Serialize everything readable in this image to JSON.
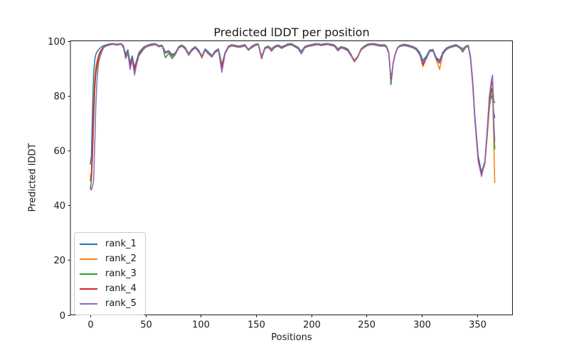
{
  "chart_data": {
    "type": "line",
    "title": "Predicted lDDT per position",
    "xlabel": "Positions",
    "ylabel": "Predicted lDDT",
    "xlim": [
      -18,
      382
    ],
    "ylim": [
      0,
      100
    ],
    "xticks": [
      0,
      50,
      100,
      150,
      200,
      250,
      300,
      350
    ],
    "yticks": [
      0,
      20,
      40,
      60,
      80,
      100
    ],
    "grid": false,
    "legend_position": "lower left",
    "background": "#ffffff",
    "axis_color": "#1a1a1a",
    "positions": [
      0,
      1,
      2,
      3,
      4,
      5,
      6,
      7,
      8,
      10,
      12,
      14,
      16,
      18,
      20,
      22,
      24,
      26,
      28,
      30,
      32,
      34,
      36,
      38,
      40,
      42,
      44,
      46,
      48,
      50,
      53,
      56,
      59,
      62,
      65,
      68,
      71,
      74,
      77,
      80,
      83,
      86,
      89,
      92,
      95,
      98,
      101,
      104,
      107,
      110,
      113,
      116,
      119,
      122,
      125,
      128,
      131,
      134,
      137,
      140,
      143,
      146,
      149,
      152,
      155,
      158,
      161,
      164,
      167,
      170,
      173,
      176,
      179,
      182,
      185,
      188,
      191,
      194,
      197,
      200,
      203,
      206,
      209,
      212,
      215,
      218,
      221,
      224,
      227,
      230,
      233,
      236,
      239,
      242,
      245,
      248,
      251,
      254,
      257,
      260,
      263,
      266,
      268,
      270,
      271,
      272,
      273,
      274,
      276,
      278,
      280,
      283,
      286,
      289,
      292,
      295,
      298,
      301,
      304,
      307,
      310,
      313,
      316,
      319,
      322,
      325,
      328,
      331,
      334,
      337,
      340,
      342,
      344,
      346,
      348,
      351,
      354,
      357,
      359,
      361,
      363,
      364,
      365,
      366
    ],
    "series": [
      {
        "name": "rank_1",
        "color": "#1f77b4",
        "values": [
          55,
          58,
          75,
          88,
          93,
          95,
          96,
          96.5,
          97,
          97.8,
          98.2,
          98.5,
          98.7,
          98.9,
          99,
          98.9,
          98.7,
          98.9,
          99,
          98.2,
          95,
          96.8,
          92,
          94.5,
          90.2,
          93,
          95.8,
          96.7,
          97.6,
          98.1,
          98.6,
          98.9,
          99,
          98.3,
          98.4,
          95.9,
          96.4,
          95,
          95.7,
          97.9,
          98.5,
          97.6,
          95.3,
          97,
          97.9,
          96.6,
          94.5,
          97.1,
          95.9,
          94.6,
          96.3,
          97.1,
          91.3,
          95.7,
          98.1,
          98.6,
          98.4,
          98.1,
          98.3,
          98.6,
          96.9,
          98,
          98.7,
          98.9,
          94.3,
          97.6,
          98.1,
          97.1,
          98.1,
          98.5,
          97.8,
          98.3,
          98.9,
          99,
          98.3,
          97.7,
          96.1,
          97.9,
          98.4,
          98.6,
          98.9,
          99,
          98.7,
          99,
          99,
          98.8,
          98.5,
          97.1,
          97.9,
          97.6,
          97,
          95,
          92.4,
          94.3,
          97.1,
          98.1,
          98.8,
          99,
          99,
          98.7,
          98.5,
          98.6,
          98.1,
          96,
          91.5,
          84,
          87.5,
          91.8,
          95.4,
          97.5,
          98.3,
          98.7,
          98.6,
          98.3,
          97.9,
          97.3,
          95.8,
          92.9,
          94.3,
          96.6,
          96.9,
          93.9,
          92.9,
          95.8,
          97.3,
          97.9,
          98.3,
          98.6,
          97.9,
          97.1,
          98.1,
          98.4,
          94.3,
          85.5,
          72.5,
          58,
          52,
          56,
          66,
          76,
          80,
          79,
          74,
          72
        ]
      },
      {
        "name": "rank_2",
        "color": "#ff7f0e",
        "values": [
          50.5,
          52,
          62,
          76,
          86,
          90.5,
          92.5,
          94,
          95.5,
          96.8,
          97.9,
          98.3,
          98.5,
          98.7,
          98.9,
          98.7,
          98.6,
          98.7,
          98.9,
          97.9,
          94.1,
          96.2,
          90.3,
          93.6,
          89,
          92.2,
          95.2,
          96.2,
          97.2,
          97.9,
          98.4,
          98.7,
          98.9,
          98.1,
          98.2,
          95.6,
          96.1,
          94.7,
          95.4,
          97.7,
          98.3,
          97.3,
          95,
          96.7,
          97.7,
          96.1,
          93.6,
          96.8,
          95.5,
          94.3,
          96,
          96.8,
          90.6,
          95.3,
          97.9,
          98.4,
          98.2,
          97.9,
          98.1,
          98.4,
          96.6,
          97.8,
          98.5,
          98.8,
          94.1,
          97.4,
          97.9,
          96.8,
          97.9,
          98.3,
          97.5,
          98.1,
          98.7,
          98.8,
          98.1,
          97.4,
          95.6,
          97.7,
          98.2,
          98.4,
          98.7,
          98.9,
          98.5,
          98.8,
          98.9,
          98.6,
          98.3,
          96.6,
          97.7,
          97.3,
          96.6,
          94.7,
          93,
          94.4,
          96.9,
          97.9,
          98.6,
          98.9,
          98.8,
          98.5,
          98.3,
          98.4,
          97.9,
          95.8,
          91.8,
          85.5,
          88.2,
          92,
          95.5,
          97.4,
          98.2,
          98.5,
          98.4,
          98.1,
          97.7,
          97,
          95.2,
          90.6,
          93.5,
          96.3,
          96.6,
          93.2,
          89.6,
          95,
          97,
          97.7,
          98.1,
          98.4,
          97.7,
          96.7,
          97.9,
          98.2,
          93.8,
          84.5,
          71,
          56.5,
          51.2,
          55,
          64.5,
          75,
          81.5,
          82.5,
          65,
          48.2
        ]
      },
      {
        "name": "rank_3",
        "color": "#2ca02c",
        "values": [
          46,
          49,
          58,
          71,
          82,
          87.5,
          90.5,
          92.5,
          94.5,
          96.5,
          97.7,
          98.2,
          98.5,
          98.7,
          98.8,
          98.7,
          98.5,
          98.7,
          98.8,
          97.7,
          94.3,
          96,
          91.2,
          93.8,
          89.2,
          92.4,
          95,
          96,
          97.1,
          97.8,
          98.3,
          98.6,
          98.8,
          98,
          98.2,
          93.8,
          95.5,
          93.5,
          95,
          97.5,
          98.2,
          97.1,
          94.9,
          96.6,
          97.6,
          96.2,
          94.3,
          96.7,
          95.3,
          94.5,
          95.9,
          96.7,
          91,
          95.4,
          97.8,
          98.3,
          98.1,
          97.8,
          98,
          98.3,
          96.5,
          97.6,
          98.4,
          98.8,
          93.8,
          97.3,
          97.8,
          96.4,
          97.8,
          98.2,
          97.4,
          98,
          98.6,
          98.7,
          98,
          97.3,
          95.4,
          97.6,
          98.1,
          98.3,
          98.6,
          98.8,
          98.4,
          98.7,
          98.8,
          98.5,
          98.2,
          96.5,
          97.6,
          97.2,
          96.5,
          94.6,
          92.6,
          94.2,
          96.8,
          97.8,
          98.5,
          98.8,
          98.7,
          98.4,
          98.2,
          98.3,
          97.8,
          95.6,
          91.2,
          85.8,
          88,
          91.7,
          95.3,
          97.4,
          98.1,
          98.4,
          98.3,
          98,
          97.6,
          96.9,
          95.3,
          92.2,
          93.8,
          96.2,
          96.5,
          93.6,
          92.2,
          95.3,
          96.9,
          97.6,
          98,
          98.3,
          97.6,
          95.9,
          97.8,
          98.1,
          93.9,
          84.8,
          71.8,
          57.3,
          51.4,
          55.4,
          65.2,
          76.5,
          82.8,
          81,
          70,
          60.5
        ]
      },
      {
        "name": "rank_4",
        "color": "#d62728",
        "values": [
          49,
          51,
          60,
          74,
          84.5,
          89,
          91.5,
          93.5,
          95,
          96.6,
          97.8,
          98.2,
          98.4,
          98.6,
          98.8,
          98.6,
          98.5,
          98.6,
          98.8,
          97.6,
          93.8,
          95.8,
          90.8,
          93.4,
          89.8,
          92,
          94.8,
          95.8,
          96.9,
          97.7,
          98.2,
          98.5,
          98.7,
          97.9,
          98.1,
          95.7,
          96.2,
          94.6,
          95.2,
          97.4,
          98.1,
          97,
          94.8,
          96.5,
          97.5,
          96,
          94.4,
          96.6,
          95.2,
          94.1,
          95.8,
          96.6,
          90.2,
          95.6,
          97.7,
          98.2,
          98,
          97.7,
          97.9,
          98.2,
          96.8,
          97.5,
          98.3,
          98.7,
          93.5,
          97.2,
          97.7,
          96.3,
          97.7,
          98.1,
          97.3,
          97.9,
          98.5,
          98.6,
          97.9,
          97.2,
          95.3,
          97.5,
          98,
          98.2,
          98.5,
          98.7,
          98.3,
          98.6,
          98.7,
          98.4,
          98.1,
          96.4,
          97.5,
          97.1,
          96.4,
          94.5,
          92.5,
          94.1,
          96.7,
          97.7,
          98.4,
          98.7,
          98.6,
          98.3,
          98.1,
          98.2,
          97.7,
          95.5,
          91,
          86.2,
          87.9,
          91.6,
          95.2,
          97.3,
          98,
          98.3,
          98.2,
          97.9,
          97.5,
          96.8,
          95,
          91.2,
          93.6,
          96.1,
          96.4,
          93.4,
          92,
          95.2,
          96.8,
          97.5,
          97.9,
          98.2,
          97.5,
          96.4,
          97.7,
          98,
          93.6,
          84.2,
          71.4,
          57,
          51.1,
          55.5,
          66.5,
          78,
          84,
          85.5,
          78,
          77.5
        ]
      },
      {
        "name": "rank_5",
        "color": "#9467bd",
        "values": [
          47,
          45.5,
          47,
          49,
          62,
          76,
          85,
          90,
          93,
          95.5,
          97.5,
          98,
          98.3,
          98.5,
          98.7,
          98.6,
          98.4,
          98.6,
          98.7,
          97.5,
          93.5,
          95.5,
          89.5,
          93,
          87.5,
          91.5,
          94.5,
          95.6,
          96.8,
          97.6,
          98.1,
          98.4,
          98.6,
          97.8,
          98,
          95.5,
          96,
          94.3,
          95.1,
          97.3,
          98,
          96.9,
          94.7,
          96.4,
          97.4,
          95.9,
          94.6,
          96.5,
          95.1,
          94.4,
          95.7,
          96.5,
          88.5,
          95.2,
          97.6,
          98.1,
          97.9,
          97.6,
          97.8,
          98.1,
          96.7,
          97.4,
          98.2,
          98.6,
          94,
          97.1,
          97.6,
          96.2,
          97.6,
          98,
          97.2,
          97.8,
          98.4,
          98.5,
          97.8,
          97.1,
          95.2,
          97.4,
          97.9,
          98.1,
          98.4,
          98.6,
          98.2,
          98.5,
          98.6,
          98.3,
          98,
          96.3,
          97.4,
          97,
          96.3,
          94.4,
          92.3,
          94,
          96.6,
          97.6,
          98.3,
          98.6,
          98.5,
          98.2,
          98,
          98.1,
          97.6,
          95.4,
          90.8,
          86.8,
          88.5,
          91.5,
          95.1,
          97.2,
          97.9,
          98.2,
          98.1,
          97.8,
          97.4,
          96.7,
          94.9,
          92,
          93.4,
          96,
          96.3,
          93.1,
          91.8,
          95.1,
          96.7,
          97.4,
          97.8,
          98.1,
          97.4,
          96.3,
          97.6,
          97.9,
          93.4,
          84,
          71,
          56,
          50.5,
          55.8,
          67,
          79.5,
          86,
          87.5,
          72,
          63.5
        ]
      }
    ]
  }
}
